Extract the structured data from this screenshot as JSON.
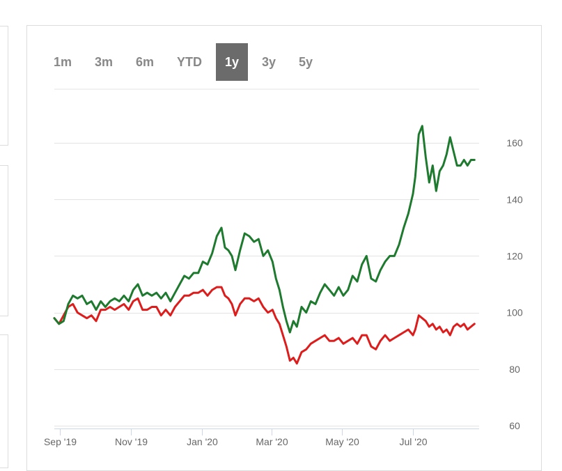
{
  "range_selector": {
    "options": [
      "1m",
      "3m",
      "6m",
      "YTD",
      "1y",
      "3y",
      "5y"
    ],
    "selected": "1y"
  },
  "chart_data": {
    "type": "line",
    "x_axis": {
      "ticks": [
        "Sep '19",
        "Nov '19",
        "Jan '20",
        "Mar '20",
        "May '20",
        "Jul '20"
      ],
      "range": [
        "2019-08-27",
        "2020-08-27"
      ]
    },
    "y_axis": {
      "ticks": [
        60,
        80,
        100,
        120,
        140,
        160
      ],
      "range": [
        59,
        179
      ],
      "position": "right"
    },
    "grid": true,
    "legend": "none",
    "series": [
      {
        "color": "#1e7a2e",
        "points": [
          [
            "2019-08-27",
            98
          ],
          [
            "2019-08-31",
            96
          ],
          [
            "2019-09-04",
            97
          ],
          [
            "2019-09-08",
            103
          ],
          [
            "2019-09-12",
            106
          ],
          [
            "2019-09-16",
            105
          ],
          [
            "2019-09-20",
            106
          ],
          [
            "2019-09-24",
            103
          ],
          [
            "2019-09-28",
            104
          ],
          [
            "2019-10-02",
            101
          ],
          [
            "2019-10-06",
            104
          ],
          [
            "2019-10-10",
            102
          ],
          [
            "2019-10-14",
            104
          ],
          [
            "2019-10-18",
            105
          ],
          [
            "2019-10-22",
            104
          ],
          [
            "2019-10-26",
            106
          ],
          [
            "2019-10-30",
            104
          ],
          [
            "2019-11-03",
            108
          ],
          [
            "2019-11-07",
            110
          ],
          [
            "2019-11-11",
            106
          ],
          [
            "2019-11-15",
            107
          ],
          [
            "2019-11-19",
            106
          ],
          [
            "2019-11-23",
            107
          ],
          [
            "2019-11-27",
            105
          ],
          [
            "2019-12-01",
            107
          ],
          [
            "2019-12-05",
            104
          ],
          [
            "2019-12-09",
            107
          ],
          [
            "2019-12-13",
            110
          ],
          [
            "2019-12-17",
            113
          ],
          [
            "2019-12-21",
            112
          ],
          [
            "2019-12-25",
            114
          ],
          [
            "2019-12-29",
            114
          ],
          [
            "2020-01-02",
            118
          ],
          [
            "2020-01-06",
            117
          ],
          [
            "2020-01-10",
            121
          ],
          [
            "2020-01-14",
            127
          ],
          [
            "2020-01-18",
            130
          ],
          [
            "2020-01-21",
            123
          ],
          [
            "2020-01-24",
            122
          ],
          [
            "2020-01-27",
            120
          ],
          [
            "2020-01-30",
            115
          ],
          [
            "2020-02-03",
            122
          ],
          [
            "2020-02-07",
            128
          ],
          [
            "2020-02-11",
            127
          ],
          [
            "2020-02-15",
            125
          ],
          [
            "2020-02-19",
            126
          ],
          [
            "2020-02-23",
            120
          ],
          [
            "2020-02-27",
            122
          ],
          [
            "2020-03-02",
            118
          ],
          [
            "2020-03-05",
            112
          ],
          [
            "2020-03-08",
            108
          ],
          [
            "2020-03-11",
            102
          ],
          [
            "2020-03-14",
            97
          ],
          [
            "2020-03-17",
            93
          ],
          [
            "2020-03-20",
            97
          ],
          [
            "2020-03-23",
            95
          ],
          [
            "2020-03-27",
            102
          ],
          [
            "2020-03-31",
            100
          ],
          [
            "2020-04-04",
            104
          ],
          [
            "2020-04-08",
            103
          ],
          [
            "2020-04-12",
            107
          ],
          [
            "2020-04-16",
            110
          ],
          [
            "2020-04-20",
            108
          ],
          [
            "2020-04-24",
            106
          ],
          [
            "2020-04-28",
            109
          ],
          [
            "2020-05-02",
            106
          ],
          [
            "2020-05-06",
            108
          ],
          [
            "2020-05-10",
            113
          ],
          [
            "2020-05-14",
            111
          ],
          [
            "2020-05-18",
            117
          ],
          [
            "2020-05-22",
            120
          ],
          [
            "2020-05-26",
            112
          ],
          [
            "2020-05-30",
            111
          ],
          [
            "2020-06-03",
            115
          ],
          [
            "2020-06-07",
            118
          ],
          [
            "2020-06-11",
            120
          ],
          [
            "2020-06-15",
            120
          ],
          [
            "2020-06-19",
            124
          ],
          [
            "2020-06-23",
            130
          ],
          [
            "2020-06-27",
            135
          ],
          [
            "2020-07-01",
            142
          ],
          [
            "2020-07-03",
            148
          ],
          [
            "2020-07-06",
            163
          ],
          [
            "2020-07-09",
            166
          ],
          [
            "2020-07-12",
            155
          ],
          [
            "2020-07-15",
            146
          ],
          [
            "2020-07-18",
            152
          ],
          [
            "2020-07-21",
            143
          ],
          [
            "2020-07-24",
            150
          ],
          [
            "2020-07-27",
            152
          ],
          [
            "2020-07-30",
            156
          ],
          [
            "2020-08-02",
            162
          ],
          [
            "2020-08-05",
            157
          ],
          [
            "2020-08-08",
            152
          ],
          [
            "2020-08-11",
            152
          ],
          [
            "2020-08-14",
            154
          ],
          [
            "2020-08-17",
            152
          ],
          [
            "2020-08-20",
            154
          ],
          [
            "2020-08-23",
            154
          ]
        ]
      },
      {
        "color": "#dd1c1c",
        "points": [
          [
            "2019-08-27",
            98
          ],
          [
            "2019-08-31",
            96
          ],
          [
            "2019-09-04",
            99
          ],
          [
            "2019-09-08",
            102
          ],
          [
            "2019-09-12",
            103
          ],
          [
            "2019-09-16",
            100
          ],
          [
            "2019-09-20",
            99
          ],
          [
            "2019-09-24",
            98
          ],
          [
            "2019-09-28",
            99
          ],
          [
            "2019-10-02",
            97
          ],
          [
            "2019-10-06",
            101
          ],
          [
            "2019-10-10",
            101
          ],
          [
            "2019-10-14",
            102
          ],
          [
            "2019-10-18",
            101
          ],
          [
            "2019-10-22",
            102
          ],
          [
            "2019-10-26",
            103
          ],
          [
            "2019-10-30",
            101
          ],
          [
            "2019-11-03",
            104
          ],
          [
            "2019-11-07",
            105
          ],
          [
            "2019-11-11",
            101
          ],
          [
            "2019-11-15",
            101
          ],
          [
            "2019-11-19",
            102
          ],
          [
            "2019-11-23",
            102
          ],
          [
            "2019-11-27",
            99
          ],
          [
            "2019-12-01",
            101
          ],
          [
            "2019-12-05",
            99
          ],
          [
            "2019-12-09",
            102
          ],
          [
            "2019-12-13",
            104
          ],
          [
            "2019-12-17",
            106
          ],
          [
            "2019-12-21",
            106
          ],
          [
            "2019-12-25",
            107
          ],
          [
            "2019-12-29",
            107
          ],
          [
            "2020-01-02",
            108
          ],
          [
            "2020-01-06",
            106
          ],
          [
            "2020-01-10",
            108
          ],
          [
            "2020-01-14",
            109
          ],
          [
            "2020-01-18",
            109
          ],
          [
            "2020-01-21",
            106
          ],
          [
            "2020-01-24",
            105
          ],
          [
            "2020-01-27",
            103
          ],
          [
            "2020-01-30",
            99
          ],
          [
            "2020-02-03",
            103
          ],
          [
            "2020-02-07",
            105
          ],
          [
            "2020-02-11",
            105
          ],
          [
            "2020-02-15",
            104
          ],
          [
            "2020-02-19",
            105
          ],
          [
            "2020-02-23",
            102
          ],
          [
            "2020-02-27",
            100
          ],
          [
            "2020-03-02",
            101
          ],
          [
            "2020-03-05",
            98
          ],
          [
            "2020-03-08",
            96
          ],
          [
            "2020-03-11",
            92
          ],
          [
            "2020-03-14",
            88
          ],
          [
            "2020-03-17",
            83
          ],
          [
            "2020-03-20",
            84
          ],
          [
            "2020-03-23",
            82
          ],
          [
            "2020-03-27",
            86
          ],
          [
            "2020-03-31",
            87
          ],
          [
            "2020-04-04",
            89
          ],
          [
            "2020-04-08",
            90
          ],
          [
            "2020-04-12",
            91
          ],
          [
            "2020-04-16",
            92
          ],
          [
            "2020-04-20",
            90
          ],
          [
            "2020-04-24",
            90
          ],
          [
            "2020-04-28",
            91
          ],
          [
            "2020-05-02",
            89
          ],
          [
            "2020-05-06",
            90
          ],
          [
            "2020-05-10",
            91
          ],
          [
            "2020-05-14",
            89
          ],
          [
            "2020-05-18",
            92
          ],
          [
            "2020-05-22",
            92
          ],
          [
            "2020-05-26",
            88
          ],
          [
            "2020-05-30",
            87
          ],
          [
            "2020-06-03",
            90
          ],
          [
            "2020-06-07",
            92
          ],
          [
            "2020-06-11",
            90
          ],
          [
            "2020-06-15",
            91
          ],
          [
            "2020-06-19",
            92
          ],
          [
            "2020-06-23",
            93
          ],
          [
            "2020-06-27",
            94
          ],
          [
            "2020-07-01",
            92
          ],
          [
            "2020-07-03",
            94
          ],
          [
            "2020-07-06",
            99
          ],
          [
            "2020-07-09",
            98
          ],
          [
            "2020-07-12",
            97
          ],
          [
            "2020-07-15",
            95
          ],
          [
            "2020-07-18",
            96
          ],
          [
            "2020-07-21",
            94
          ],
          [
            "2020-07-24",
            95
          ],
          [
            "2020-07-27",
            93
          ],
          [
            "2020-07-30",
            94
          ],
          [
            "2020-08-02",
            92
          ],
          [
            "2020-08-05",
            95
          ],
          [
            "2020-08-08",
            96
          ],
          [
            "2020-08-11",
            95
          ],
          [
            "2020-08-14",
            96
          ],
          [
            "2020-08-17",
            94
          ],
          [
            "2020-08-20",
            95
          ],
          [
            "2020-08-23",
            96
          ]
        ]
      }
    ]
  }
}
